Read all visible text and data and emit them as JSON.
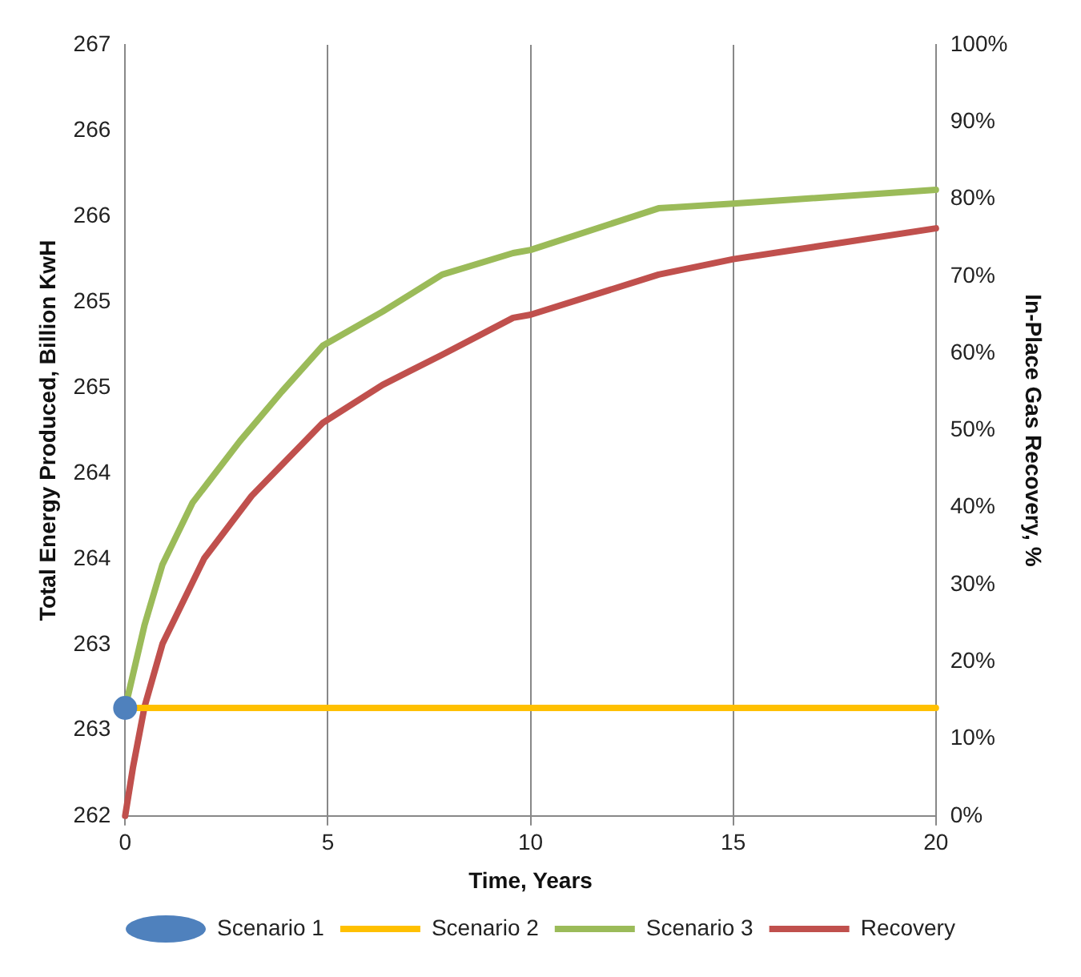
{
  "chart_data": {
    "type": "line",
    "xlabel": "Time, Years",
    "ylabel": "Total Energy Produced, Billion KwH",
    "y2label": "In-Place Gas Recovery, %",
    "xlim": [
      0,
      20
    ],
    "xticks": [
      0,
      5,
      10,
      15,
      20
    ],
    "ylim": [
      262,
      267
    ],
    "yticks": [
      {
        "value": 262,
        "label": "262"
      },
      {
        "value": 262.556,
        "label": "263"
      },
      {
        "value": 263.111,
        "label": "263"
      },
      {
        "value": 263.667,
        "label": "264"
      },
      {
        "value": 264.222,
        "label": "264"
      },
      {
        "value": 264.778,
        "label": "265"
      },
      {
        "value": 265.333,
        "label": "265"
      },
      {
        "value": 265.889,
        "label": "266"
      },
      {
        "value": 266.444,
        "label": "266"
      },
      {
        "value": 267,
        "label": "267"
      }
    ],
    "y2lim": [
      0,
      100
    ],
    "y2ticks": [
      {
        "value": 0,
        "label": "0%"
      },
      {
        "value": 10,
        "label": "10%"
      },
      {
        "value": 20,
        "label": "20%"
      },
      {
        "value": 30,
        "label": "30%"
      },
      {
        "value": 40,
        "label": "40%"
      },
      {
        "value": 50,
        "label": "50%"
      },
      {
        "value": 60,
        "label": "60%"
      },
      {
        "value": 70,
        "label": "70%"
      },
      {
        "value": 80,
        "label": "80%"
      },
      {
        "value": 90,
        "label": "90%"
      },
      {
        "value": 100,
        "label": "100%"
      }
    ],
    "grid": "x",
    "legend": "bottom",
    "marker": "none",
    "line_style": "solid",
    "series": [
      {
        "name": "Scenario 1",
        "type": "scatter",
        "marker": "circle",
        "color": "#4f81bd",
        "x": [
          0
        ],
        "values": [
          262.7
        ]
      },
      {
        "name": "Scenario 2",
        "color": "#ffc000",
        "x": [
          0,
          20
        ],
        "values": [
          262.7,
          262.7
        ]
      },
      {
        "name": "Scenario 3",
        "color": "#9bbb59",
        "x": [
          0,
          0.48,
          0.92,
          1.66,
          2.83,
          3.86,
          4.88,
          6.35,
          7.82,
          9.57,
          10,
          13.16,
          15,
          20
        ],
        "values": [
          262.7,
          263.24,
          263.63,
          264.03,
          264.43,
          264.75,
          265.05,
          265.27,
          265.51,
          265.65,
          265.67,
          265.94,
          265.97,
          266.06
        ]
      },
      {
        "name": "Recovery",
        "color": "#c0504d",
        "axis": "y2",
        "x": [
          0,
          0.19,
          0.48,
          0.92,
          1.95,
          3.12,
          4.88,
          6.35,
          7.82,
          9.57,
          10,
          13.16,
          15,
          20
        ],
        "values": [
          0,
          6.2,
          14.2,
          22.3,
          33.4,
          41.5,
          51,
          55.9,
          59.8,
          64.6,
          65,
          70.2,
          72.2,
          76.2
        ]
      }
    ]
  }
}
